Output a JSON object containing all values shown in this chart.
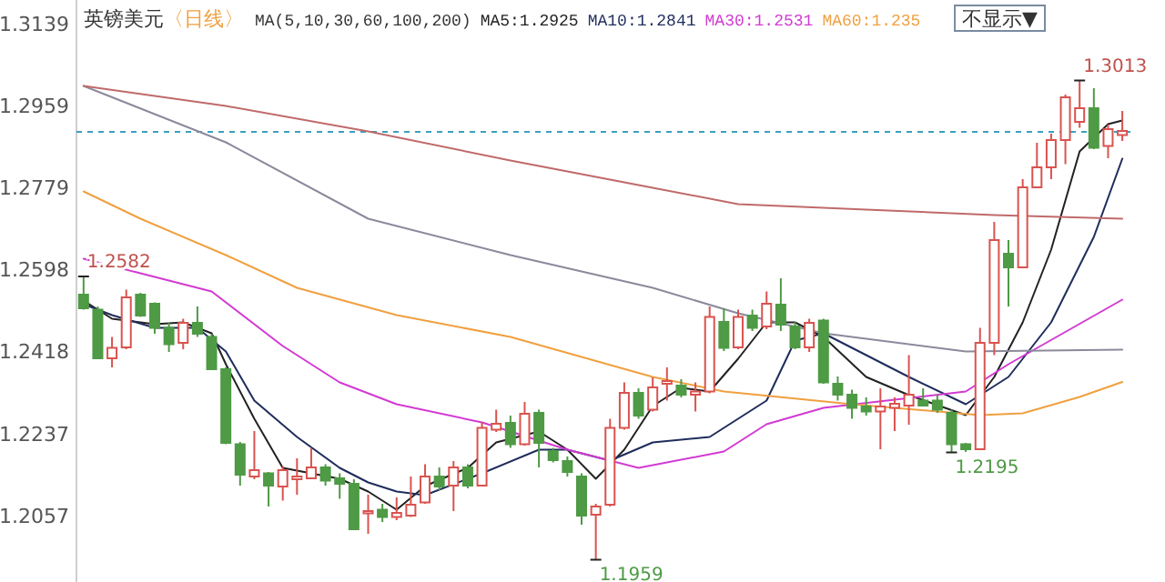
{
  "chart_data": {
    "type": "candlestick",
    "title": "英镑美元",
    "subtitle": "〈日线〉",
    "categories": [
      null,
      null,
      null,
      null,
      null,
      null,
      null,
      null,
      null,
      null,
      null,
      null,
      null,
      null,
      null,
      null,
      null,
      null,
      null,
      null,
      null,
      null,
      null,
      null,
      null,
      null,
      null,
      null,
      null,
      null,
      null,
      null,
      null,
      null,
      null,
      null,
      null,
      null,
      null,
      null,
      null,
      null,
      null,
      null,
      null,
      null,
      null,
      null,
      null,
      null,
      null,
      null,
      null,
      null,
      null,
      null,
      null,
      null,
      null,
      null,
      null,
      null,
      null,
      null,
      null,
      null,
      null,
      null,
      null,
      null,
      null,
      null,
      null,
      null
    ],
    "ohlc": [
      [
        1.2542,
        1.2582,
        1.2509,
        1.2512
      ],
      [
        1.2509,
        1.2516,
        1.24,
        1.2402
      ],
      [
        1.2402,
        1.2449,
        1.2382,
        1.2425
      ],
      [
        1.2426,
        1.2553,
        1.2422,
        1.2536
      ],
      [
        1.2542,
        1.2546,
        1.2493,
        1.2496
      ],
      [
        1.2522,
        1.2525,
        1.2456,
        1.2469
      ],
      [
        1.2469,
        1.248,
        1.2416,
        1.2433
      ],
      [
        1.2436,
        1.2489,
        1.2422,
        1.248
      ],
      [
        1.248,
        1.2516,
        1.2449,
        1.2456
      ],
      [
        1.2449,
        1.2456,
        1.2376,
        1.2378
      ],
      [
        1.2378,
        1.2382,
        1.2213,
        1.2216
      ],
      [
        1.2213,
        1.2218,
        1.2122,
        1.2146
      ],
      [
        1.2142,
        1.2242,
        1.2136,
        1.2156
      ],
      [
        1.2149,
        1.2152,
        1.2076,
        1.2122
      ],
      [
        1.212,
        1.2165,
        1.2089,
        1.2156
      ],
      [
        1.2136,
        1.2182,
        1.2102,
        1.2142
      ],
      [
        1.2138,
        1.2205,
        1.2136,
        1.2162
      ],
      [
        1.2162,
        1.2169,
        1.2122,
        1.2133
      ],
      [
        1.2138,
        1.2149,
        1.2093,
        1.2126
      ],
      [
        1.2126,
        1.2136,
        1.2024,
        1.2026
      ],
      [
        1.2061,
        1.2102,
        1.2016,
        1.2066
      ],
      [
        1.2069,
        1.2082,
        1.2042,
        1.2053
      ],
      [
        1.2053,
        1.2096,
        1.2046,
        1.2062
      ],
      [
        1.2056,
        1.2142,
        1.2053,
        1.208
      ],
      [
        1.2085,
        1.2169,
        1.2082,
        1.2142
      ],
      [
        1.2142,
        1.2162,
        1.2112,
        1.212
      ],
      [
        1.2122,
        1.2176,
        1.2066,
        1.2162
      ],
      [
        1.2162,
        1.2169,
        1.2116,
        1.2122
      ],
      [
        1.2122,
        1.2262,
        1.212,
        1.2249
      ],
      [
        1.2245,
        1.2289,
        1.224,
        1.2258
      ],
      [
        1.226,
        1.2276,
        1.2205,
        1.2213
      ],
      [
        1.2213,
        1.2306,
        1.221,
        1.228
      ],
      [
        1.2282,
        1.2289,
        1.2162,
        1.2216
      ],
      [
        1.2198,
        1.2205,
        1.2173,
        1.2178
      ],
      [
        1.2176,
        1.2186,
        1.2142,
        1.2152
      ],
      [
        1.2142,
        1.2149,
        1.2036,
        1.2056
      ],
      [
        1.2058,
        1.2082,
        1.1959,
        1.2076
      ],
      [
        1.208,
        1.2269,
        1.2076,
        1.2249
      ],
      [
        1.2249,
        1.2349,
        1.2245,
        1.2326
      ],
      [
        1.2326,
        1.2336,
        1.2269,
        1.2276
      ],
      [
        1.2289,
        1.236,
        1.2285,
        1.2338
      ],
      [
        1.2346,
        1.2382,
        1.2309,
        1.2352
      ],
      [
        1.2342,
        1.2356,
        1.2316,
        1.2322
      ],
      [
        1.2322,
        1.2349,
        1.2285,
        1.2329
      ],
      [
        1.2329,
        1.2516,
        1.2325,
        1.2493
      ],
      [
        1.2482,
        1.2512,
        1.2418,
        1.2425
      ],
      [
        1.2426,
        1.2509,
        1.2422,
        1.2493
      ],
      [
        1.2496,
        1.2509,
        1.2462,
        1.2469
      ],
      [
        1.2472,
        1.2549,
        1.2466,
        1.2522
      ],
      [
        1.252,
        1.2578,
        1.2462,
        1.2476
      ],
      [
        1.2472,
        1.2482,
        1.2422,
        1.2426
      ],
      [
        1.2426,
        1.2489,
        1.2416,
        1.248
      ],
      [
        1.2485,
        1.2489,
        1.2346,
        1.2349
      ],
      [
        1.2346,
        1.2362,
        1.2309,
        1.2322
      ],
      [
        1.2322,
        1.2333,
        1.2269,
        1.2293
      ],
      [
        1.2296,
        1.2316,
        1.2276,
        1.2285
      ],
      [
        1.2285,
        1.2336,
        1.2202,
        1.2296
      ],
      [
        1.2293,
        1.2316,
        1.2242,
        1.2302
      ],
      [
        1.2298,
        1.2409,
        1.2256,
        1.2322
      ],
      [
        1.2309,
        1.2336,
        1.2296,
        1.2298
      ],
      [
        1.2309,
        1.2322,
        1.2282,
        1.2289
      ],
      [
        1.2282,
        1.2289,
        1.2195,
        1.2213
      ],
      [
        1.2213,
        1.2216,
        1.2196,
        1.2202
      ],
      [
        1.2202,
        1.2469,
        1.22,
        1.2436
      ],
      [
        1.2436,
        1.2702,
        1.2409,
        1.2662
      ],
      [
        1.2632,
        1.2662,
        1.2516,
        1.2602
      ],
      [
        1.2602,
        1.2796,
        1.26,
        1.2778
      ],
      [
        1.2778,
        1.2876,
        1.2776,
        1.2822
      ],
      [
        1.2822,
        1.2896,
        1.2796,
        1.2882
      ],
      [
        1.2882,
        1.2982,
        1.2829,
        1.2976
      ],
      [
        1.2922,
        1.3013,
        1.2909,
        1.2952
      ],
      [
        1.2952,
        1.2996,
        1.2862,
        1.2865
      ],
      [
        1.2869,
        1.2916,
        1.2842,
        1.2906
      ],
      [
        1.2893,
        1.2946,
        1.288,
        1.2902
      ]
    ],
    "series": [
      {
        "type": "line",
        "name": "MA5:1.2925",
        "color": "#222222",
        "values": [
          1.2529,
          null,
          1.2489,
          null,
          null,
          1.2477,
          null,
          1.2481,
          null,
          1.2457,
          1.2389,
          null,
          1.2269,
          null,
          1.2161,
          null,
          1.2149,
          null,
          1.2137,
          null,
          1.2109,
          null,
          1.2069,
          null,
          1.2121,
          null,
          null,
          1.2161,
          null,
          1.2217,
          null,
          null,
          1.2241,
          null,
          1.2201,
          null,
          1.2137,
          null,
          1.2201,
          null,
          1.2297,
          null,
          1.2337,
          null,
          1.2329,
          null,
          1.2401,
          null,
          1.2481,
          null,
          1.2481,
          null,
          1.2449,
          null,
          null,
          1.2361,
          null,
          null,
          1.2321,
          null,
          null,
          null,
          1.2277,
          null,
          1.2361,
          null,
          1.2481,
          null,
          1.2641,
          null,
          1.2857,
          null,
          1.2917,
          1.2925
        ]
      },
      {
        "type": "line",
        "name": "MA10:1.2841",
        "color": "#1f2d5c",
        "values": [
          1.2521,
          null,
          1.2497,
          null,
          null,
          1.2469,
          null,
          null,
          1.2469,
          null,
          1.2417,
          null,
          1.2309,
          null,
          null,
          1.2229,
          null,
          null,
          1.2161,
          null,
          1.2129,
          null,
          1.2109,
          null,
          1.2101,
          null,
          null,
          null,
          1.2149,
          null,
          null,
          null,
          1.2201,
          null,
          1.2201,
          null,
          null,
          1.2177,
          null,
          null,
          1.2217,
          null,
          null,
          null,
          1.2229,
          null,
          1.2269,
          null,
          1.2309,
          null,
          1.2441,
          null,
          1.2457,
          null,
          null,
          null,
          null,
          null,
          1.2361,
          null,
          null,
          null,
          1.2301,
          null,
          null,
          1.2361,
          null,
          null,
          1.2481,
          null,
          null,
          1.2669,
          null,
          1.2841
        ]
      },
      {
        "type": "line",
        "name": "MA30:1.2531",
        "color": "#d23ad2",
        "values": [
          1.2621,
          null,
          null,
          null,
          1.2589,
          null,
          null,
          null,
          null,
          1.2549,
          null,
          null,
          null,
          null,
          1.2429,
          null,
          null,
          null,
          1.2349,
          null,
          null,
          null,
          1.2301,
          null,
          null,
          null,
          null,
          null,
          1.2261,
          null,
          null,
          null,
          null,
          null,
          1.2201,
          null,
          null,
          null,
          null,
          1.2161,
          null,
          null,
          null,
          null,
          null,
          1.2197,
          null,
          null,
          1.2257,
          null,
          null,
          null,
          1.2293,
          null,
          null,
          null,
          null,
          null,
          null,
          null,
          null,
          null,
          1.2329,
          null,
          null,
          1.2389,
          null,
          null,
          null,
          null,
          null,
          null,
          null,
          1.2531
        ]
      },
      {
        "type": "line",
        "name": "MA60:1.235",
        "color": "#f0a040",
        "values": [
          1.2769,
          null,
          null,
          null,
          1.2709,
          null,
          null,
          null,
          null,
          null,
          1.2629,
          null,
          null,
          null,
          null,
          1.2557,
          null,
          null,
          null,
          null,
          null,
          null,
          1.2497,
          null,
          null,
          null,
          null,
          null,
          null,
          null,
          1.2449,
          null,
          null,
          null,
          null,
          null,
          null,
          null,
          null,
          null,
          1.2361,
          null,
          null,
          null,
          null,
          1.2329,
          null,
          null,
          null,
          null,
          null,
          null,
          null,
          null,
          1.2301,
          null,
          null,
          null,
          null,
          null,
          null,
          null,
          null,
          1.2277,
          null,
          null,
          1.2281,
          null,
          null,
          null,
          1.2317,
          null,
          null,
          1.235
        ]
      },
      {
        "type": "line",
        "color": "#8a8a9c",
        "values": [
          1.3001,
          null,
          null,
          null,
          null,
          null,
          null,
          null,
          null,
          null,
          1.2877,
          null,
          null,
          null,
          null,
          null,
          null,
          null,
          null,
          null,
          1.2709,
          null,
          null,
          null,
          null,
          null,
          null,
          null,
          null,
          null,
          1.2629,
          null,
          null,
          null,
          null,
          null,
          null,
          null,
          null,
          null,
          1.2557,
          null,
          null,
          null,
          null,
          null,
          1.2501,
          null,
          null,
          null,
          null,
          null,
          1.2457,
          null,
          null,
          null,
          null,
          null,
          null,
          null,
          null,
          null,
          1.2417,
          null,
          null,
          null,
          null,
          null,
          null,
          null,
          null,
          null,
          null,
          1.2421
        ]
      },
      {
        "type": "line",
        "color": "#c06a6a",
        "values": [
          1.3001,
          null,
          null,
          null,
          null,
          null,
          null,
          null,
          null,
          null,
          1.2957,
          null,
          null,
          null,
          null,
          null,
          null,
          null,
          null,
          null,
          1.2901,
          null,
          null,
          null,
          null,
          null,
          null,
          null,
          null,
          null,
          1.2837,
          null,
          null,
          null,
          null,
          null,
          null,
          null,
          null,
          null,
          1.2777,
          null,
          null,
          null,
          null,
          null,
          1.2741,
          null,
          null,
          null,
          null,
          null,
          null,
          null,
          null,
          1.2729,
          null,
          null,
          null,
          null,
          null,
          null,
          null,
          null,
          1.2717,
          null,
          null,
          null,
          null,
          null,
          null,
          null,
          null,
          1.2709
        ]
      }
    ],
    "ylim": [
      1.191,
      1.319
    ],
    "yticks": [
      1.3139,
      1.2959,
      1.2779,
      1.2598,
      1.2418,
      1.2237,
      1.2057
    ],
    "tick_labels": "y",
    "legend": "top",
    "ref_lines": [
      {
        "axis": "y",
        "value": 1.29,
        "color": "#3aa0c0",
        "line_style": "dashed"
      }
    ],
    "annotations": [
      "MA(5,10,30,60,100,200)",
      "不显示▼",
      "1.3013",
      "1.2582",
      "1.2195",
      "1.1959"
    ]
  }
}
